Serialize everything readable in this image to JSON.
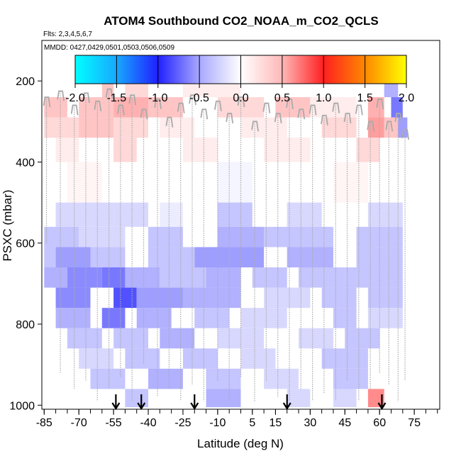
{
  "chart_data": {
    "type": "heatmap",
    "title": "ATOM4 Southbound CO2_NOAA_m_CO2_QCLS",
    "subtitle_flights": "Flts: 2,3,4,5,6,7",
    "subtitle_dates": "MMDD: 0427,0429,0501,0503,0506,0509",
    "xlabel": "Latitude (deg N)",
    "ylabel": "PSXC (mbar)",
    "xlim": [
      -86,
      86
    ],
    "ylim": [
      1010,
      100
    ],
    "x_ticks": [
      -85,
      -70,
      -55,
      -40,
      -25,
      -10,
      5,
      15,
      30,
      45,
      60,
      75
    ],
    "x_tick_labels": [
      "-85",
      "-70",
      "-55",
      "-40",
      "-25",
      "-10",
      "5",
      "15",
      "30",
      "45",
      "60",
      "75"
    ],
    "y_ticks": [
      200,
      400,
      600,
      800,
      1000
    ],
    "y_tick_labels": [
      "200",
      "400",
      "600",
      "800",
      "1000"
    ],
    "colorbar": {
      "min": -2.0,
      "max": 2.0,
      "ticks": [
        -2.0,
        -1.5,
        -1.0,
        -0.5,
        0.0,
        0.5,
        1.0,
        1.5,
        2.0
      ],
      "tick_labels": [
        "-2.0",
        "-1.5",
        "-1.0",
        "-0.5",
        "0.0",
        "0.5",
        "1.0",
        "1.5",
        "2.0"
      ]
    },
    "arrows_latitude": [
      -54,
      -43,
      -20,
      20,
      61
    ],
    "heat_rows": [
      {
        "p": [
          190,
          240
        ],
        "cells": [
          [
            -60,
            -55,
            0.3
          ],
          [
            -50,
            -40,
            0.2
          ],
          [
            -25,
            -15,
            0.1
          ],
          [
            -15,
            0,
            0.1
          ],
          [
            62,
            68,
            -0.4
          ]
        ]
      },
      {
        "p": [
          240,
          290
        ],
        "cells": [
          [
            -85,
            -75,
            0.3
          ],
          [
            -70,
            -55,
            0.3
          ],
          [
            -55,
            -40,
            0.4
          ],
          [
            -40,
            -25,
            0.3
          ],
          [
            -10,
            10,
            0.2
          ],
          [
            15,
            30,
            0.3
          ],
          [
            30,
            50,
            0.1
          ],
          [
            55,
            62,
            0.4
          ],
          [
            65,
            70,
            -0.7
          ]
        ]
      },
      {
        "p": [
          290,
          340
        ],
        "cells": [
          [
            -85,
            -70,
            0.2
          ],
          [
            -70,
            -55,
            0.3
          ],
          [
            -55,
            -40,
            0.2
          ],
          [
            -35,
            -20,
            0.1
          ],
          [
            0,
            20,
            0.1
          ],
          [
            35,
            50,
            0.2
          ],
          [
            55,
            62,
            0.5
          ],
          [
            62,
            68,
            0.3
          ],
          [
            68,
            72,
            -0.5
          ]
        ]
      },
      {
        "p": [
          340,
          400
        ],
        "cells": [
          [
            -80,
            -70,
            0.1
          ],
          [
            -55,
            -45,
            0.2
          ],
          [
            -25,
            -10,
            0.1
          ],
          [
            10,
            30,
            0.1
          ],
          [
            50,
            60,
            0.2
          ]
        ]
      },
      {
        "p": [
          400,
          500
        ],
        "cells": [
          [
            -75,
            -60,
            0.05
          ],
          [
            -10,
            5,
            -0.05
          ],
          [
            40,
            55,
            0.05
          ]
        ]
      },
      {
        "p": [
          500,
          560
        ],
        "cells": [
          [
            -80,
            -55,
            -0.2
          ],
          [
            -55,
            -40,
            -0.2
          ],
          [
            -35,
            -25,
            -0.1
          ],
          [
            -10,
            5,
            -0.3
          ],
          [
            20,
            35,
            -0.2
          ],
          [
            55,
            70,
            -0.2
          ]
        ]
      },
      {
        "p": [
          560,
          610
        ],
        "cells": [
          [
            -85,
            -70,
            -0.3
          ],
          [
            -70,
            -50,
            -0.2
          ],
          [
            -40,
            -25,
            -0.3
          ],
          [
            -10,
            10,
            -0.4
          ],
          [
            10,
            40,
            -0.3
          ],
          [
            50,
            70,
            -0.3
          ]
        ]
      },
      {
        "p": [
          610,
          660
        ],
        "cells": [
          [
            -85,
            -80,
            -0.3
          ],
          [
            -80,
            -65,
            -0.5
          ],
          [
            -65,
            -50,
            -0.3
          ],
          [
            -40,
            -20,
            -0.3
          ],
          [
            -20,
            -5,
            -0.5
          ],
          [
            -5,
            10,
            -0.5
          ],
          [
            20,
            40,
            -0.4
          ],
          [
            50,
            70,
            -0.3
          ]
        ]
      },
      {
        "p": [
          660,
          710
        ],
        "cells": [
          [
            -85,
            -75,
            -0.4
          ],
          [
            -75,
            -60,
            -0.6
          ],
          [
            -60,
            -50,
            -0.7
          ],
          [
            -50,
            -35,
            -0.4
          ],
          [
            -35,
            -15,
            -0.3
          ],
          [
            -15,
            0,
            -0.4
          ],
          [
            5,
            20,
            -0.3
          ],
          [
            25,
            45,
            -0.3
          ],
          [
            45,
            70,
            -0.3
          ]
        ]
      },
      {
        "p": [
          710,
          760
        ],
        "cells": [
          [
            -80,
            -65,
            -0.6
          ],
          [
            -55,
            -45,
            -0.9
          ],
          [
            -45,
            -25,
            -0.5
          ],
          [
            -25,
            0,
            -0.4
          ],
          [
            10,
            30,
            -0.2
          ],
          [
            35,
            50,
            -0.3
          ],
          [
            55,
            70,
            -0.3
          ]
        ]
      },
      {
        "p": [
          760,
          810
        ],
        "cells": [
          [
            -80,
            -65,
            -0.4
          ],
          [
            -60,
            -50,
            -0.7
          ],
          [
            -45,
            -30,
            -0.4
          ],
          [
            -20,
            -5,
            -0.3
          ],
          [
            0,
            20,
            -0.2
          ],
          [
            40,
            50,
            -0.3
          ],
          [
            55,
            70,
            -0.2
          ]
        ]
      },
      {
        "p": [
          810,
          860
        ],
        "cells": [
          [
            -75,
            -60,
            -0.3
          ],
          [
            -55,
            -40,
            -0.3
          ],
          [
            -35,
            -20,
            -0.4
          ],
          [
            -10,
            10,
            -0.2
          ],
          [
            25,
            40,
            -0.2
          ],
          [
            45,
            60,
            -0.3
          ]
        ]
      },
      {
        "p": [
          860,
          910
        ],
        "cells": [
          [
            -70,
            -55,
            -0.2
          ],
          [
            -50,
            -35,
            -0.3
          ],
          [
            -25,
            -10,
            -0.3
          ],
          [
            0,
            15,
            -0.2
          ],
          [
            35,
            55,
            -0.3
          ]
        ]
      },
      {
        "p": [
          910,
          960
        ],
        "cells": [
          [
            -65,
            -50,
            -0.3
          ],
          [
            -40,
            -25,
            -0.4
          ],
          [
            -15,
            0,
            -0.3
          ],
          [
            10,
            25,
            -0.2
          ],
          [
            40,
            55,
            -0.3
          ]
        ]
      },
      {
        "p": [
          960,
          1005
        ],
        "cells": [
          [
            -50,
            -40,
            -0.3
          ],
          [
            -15,
            0,
            -0.4
          ],
          [
            20,
            30,
            -0.2
          ],
          [
            55,
            62,
            0.6
          ],
          [
            40,
            50,
            -0.2
          ]
        ]
      }
    ],
    "profiles": [
      {
        "lat": -84,
        "top": 240,
        "bottom": 600
      },
      {
        "lat": -78,
        "top": 225,
        "bottom": 920
      },
      {
        "lat": -72,
        "top": 260,
        "bottom": 960
      },
      {
        "lat": -67,
        "top": 230,
        "bottom": 940
      },
      {
        "lat": -62,
        "top": 250,
        "bottom": 990
      },
      {
        "lat": -57,
        "top": 220,
        "bottom": 960
      },
      {
        "lat": -52,
        "top": 260,
        "bottom": 930
      },
      {
        "lat": -47,
        "top": 235,
        "bottom": 990
      },
      {
        "lat": -42,
        "top": 270,
        "bottom": 900
      },
      {
        "lat": -36,
        "top": 245,
        "bottom": 980
      },
      {
        "lat": -31,
        "top": 290,
        "bottom": 960
      },
      {
        "lat": -26,
        "top": 255,
        "bottom": 990
      },
      {
        "lat": -21,
        "top": 235,
        "bottom": 950
      },
      {
        "lat": -16,
        "top": 270,
        "bottom": 990
      },
      {
        "lat": -10,
        "top": 250,
        "bottom": 940
      },
      {
        "lat": -5,
        "top": 280,
        "bottom": 990
      },
      {
        "lat": 0,
        "top": 240,
        "bottom": 930
      },
      {
        "lat": 6,
        "top": 300,
        "bottom": 990
      },
      {
        "lat": 11,
        "top": 255,
        "bottom": 940
      },
      {
        "lat": 16,
        "top": 280,
        "bottom": 980
      },
      {
        "lat": 21,
        "top": 245,
        "bottom": 990
      },
      {
        "lat": 26,
        "top": 270,
        "bottom": 960
      },
      {
        "lat": 31,
        "top": 260,
        "bottom": 990
      },
      {
        "lat": 36,
        "top": 285,
        "bottom": 970
      },
      {
        "lat": 41,
        "top": 255,
        "bottom": 990
      },
      {
        "lat": 46,
        "top": 280,
        "bottom": 940
      },
      {
        "lat": 51,
        "top": 260,
        "bottom": 990
      },
      {
        "lat": 56,
        "top": 300,
        "bottom": 960
      },
      {
        "lat": 60,
        "top": 245,
        "bottom": 920
      },
      {
        "lat": 64,
        "top": 300,
        "bottom": 950
      },
      {
        "lat": 68,
        "top": 280,
        "bottom": 990
      },
      {
        "lat": 71,
        "top": 320,
        "bottom": 940
      }
    ]
  }
}
